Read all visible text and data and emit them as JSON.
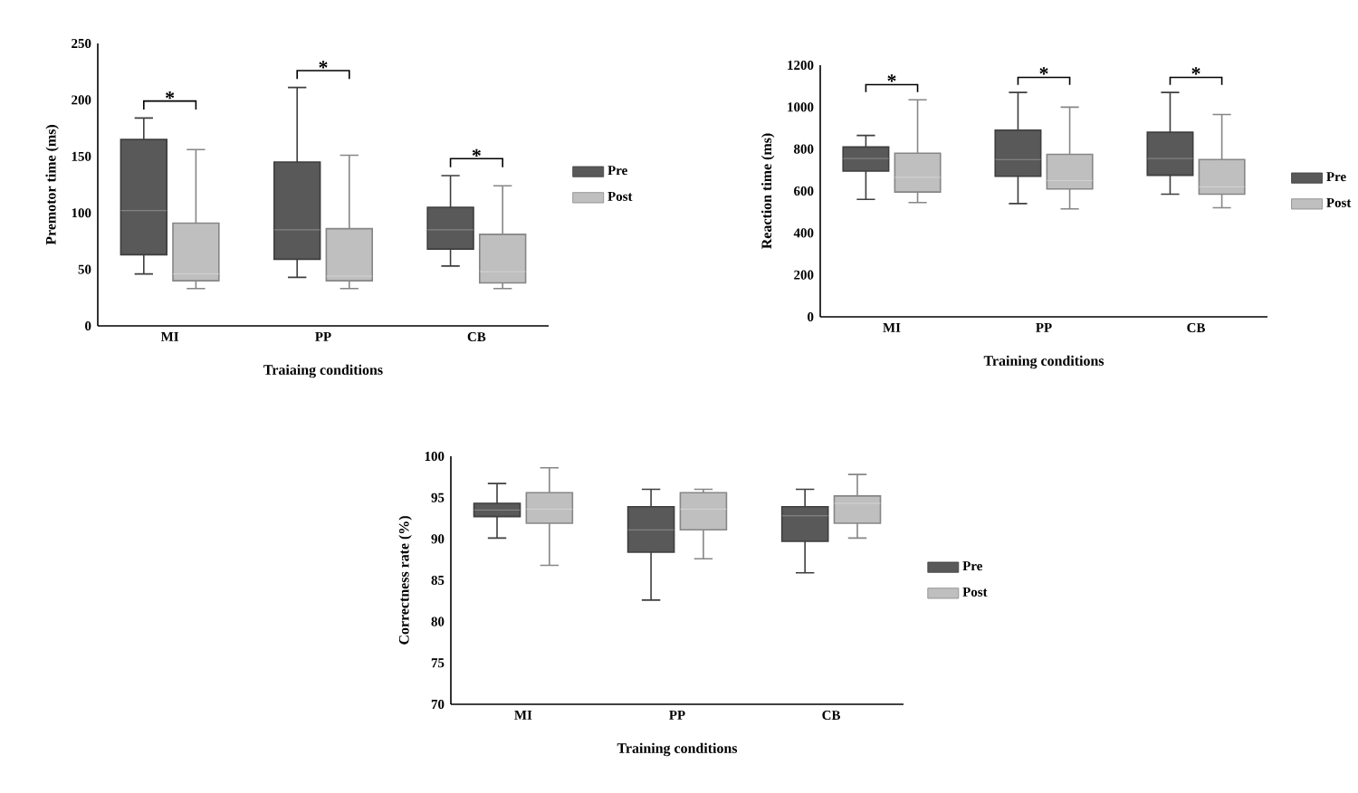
{
  "chart_data": [
    {
      "type": "box",
      "categories": [
        "MI",
        "PP",
        "CB"
      ],
      "xlabel": "Traiaing conditions",
      "ylabel": "Premotor time (ms)",
      "ylim": [
        0,
        250
      ],
      "yticks": [
        0,
        50,
        100,
        150,
        200,
        250
      ],
      "legend": "right",
      "annotations": [
        "*",
        "*",
        "*"
      ],
      "series": [
        {
          "name": "Pre",
          "color": "#595959",
          "boxes": [
            {
              "low": 46,
              "q1": 63,
              "median": 102,
              "q3": 165,
              "high": 184
            },
            {
              "low": 43,
              "q1": 59,
              "median": 85,
              "q3": 145,
              "high": 211
            },
            {
              "low": 53,
              "q1": 68,
              "median": 85,
              "q3": 105,
              "high": 133
            }
          ]
        },
        {
          "name": "Post",
          "color": "#bfbfbf",
          "boxes": [
            {
              "low": 33,
              "q1": 40,
              "median": 46,
              "q3": 91,
              "high": 156
            },
            {
              "low": 33,
              "q1": 40,
              "median": 44,
              "q3": 86,
              "high": 151
            },
            {
              "low": 33,
              "q1": 38,
              "median": 48,
              "q3": 81,
              "high": 124
            }
          ]
        }
      ]
    },
    {
      "type": "box",
      "categories": [
        "MI",
        "PP",
        "CB"
      ],
      "xlabel": "Training conditions",
      "ylabel": "Reaction time (ms)",
      "ylim": [
        0,
        1200
      ],
      "yticks": [
        0,
        200,
        400,
        600,
        800,
        1000,
        1200
      ],
      "legend": "right",
      "annotations": [
        "*",
        "*",
        "*"
      ],
      "series": [
        {
          "name": "Pre",
          "color": "#595959",
          "boxes": [
            {
              "low": 560,
              "q1": 695,
              "median": 755,
              "q3": 810,
              "high": 865
            },
            {
              "low": 540,
              "q1": 670,
              "median": 750,
              "q3": 890,
              "high": 1070
            },
            {
              "low": 585,
              "q1": 675,
              "median": 755,
              "q3": 880,
              "high": 1070
            }
          ]
        },
        {
          "name": "Post",
          "color": "#bfbfbf",
          "boxes": [
            {
              "low": 545,
              "q1": 595,
              "median": 665,
              "q3": 780,
              "high": 1035
            },
            {
              "low": 515,
              "q1": 610,
              "median": 650,
              "q3": 775,
              "high": 1000
            },
            {
              "low": 520,
              "q1": 585,
              "median": 620,
              "q3": 750,
              "high": 965
            }
          ]
        }
      ]
    },
    {
      "type": "box",
      "categories": [
        "MI",
        "PP",
        "CB"
      ],
      "xlabel": "Training conditions",
      "ylabel": "Correctness rate (%)",
      "ylim": [
        70,
        100
      ],
      "yticks": [
        70,
        75,
        80,
        85,
        90,
        95,
        100
      ],
      "legend": "right",
      "series": [
        {
          "name": "Pre",
          "color": "#595959",
          "boxes": [
            {
              "low": 90.1,
              "q1": 92.7,
              "median": 93.5,
              "q3": 94.3,
              "high": 96.7
            },
            {
              "low": 82.6,
              "q1": 88.4,
              "median": 91.1,
              "q3": 93.9,
              "high": 96.0
            },
            {
              "low": 85.9,
              "q1": 89.7,
              "median": 92.8,
              "q3": 93.9,
              "high": 96.0
            }
          ]
        },
        {
          "name": "Post",
          "color": "#bfbfbf",
          "boxes": [
            {
              "low": 86.8,
              "q1": 91.9,
              "median": 93.6,
              "q3": 95.6,
              "high": 98.6
            },
            {
              "low": 87.6,
              "q1": 91.1,
              "median": 93.6,
              "q3": 95.6,
              "high": 96.0
            },
            {
              "low": 90.1,
              "q1": 91.9,
              "median": 94.3,
              "q3": 95.2,
              "high": 97.8
            }
          ]
        }
      ]
    }
  ]
}
